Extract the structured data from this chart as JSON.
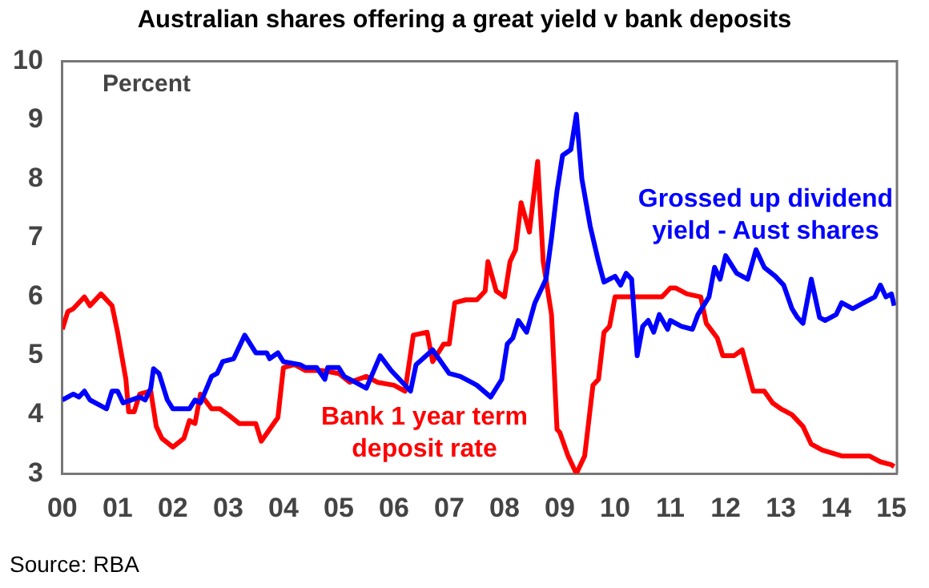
{
  "chart_data": {
    "type": "line",
    "title": "Australian shares offering a great yield v bank deposits",
    "ylabel": "Percent",
    "annotations": [
      "Source: RBA"
    ],
    "xlim": [
      2000,
      2015.1
    ],
    "xticks": [
      {
        "value": 2000,
        "label": "00"
      },
      {
        "value": 2001,
        "label": "01"
      },
      {
        "value": 2002,
        "label": "02"
      },
      {
        "value": 2003,
        "label": "03"
      },
      {
        "value": 2004,
        "label": "04"
      },
      {
        "value": 2005,
        "label": "05"
      },
      {
        "value": 2006,
        "label": "06"
      },
      {
        "value": 2007,
        "label": "07"
      },
      {
        "value": 2008,
        "label": "08"
      },
      {
        "value": 2009,
        "label": "09"
      },
      {
        "value": 2010,
        "label": "10"
      },
      {
        "value": 2011,
        "label": "11"
      },
      {
        "value": 2012,
        "label": "12"
      },
      {
        "value": 2013,
        "label": "13"
      },
      {
        "value": 2014,
        "label": "14"
      },
      {
        "value": 2015,
        "label": "15"
      }
    ],
    "ylim": [
      3,
      10
    ],
    "yticks": [
      3,
      4,
      5,
      6,
      7,
      8,
      9,
      10
    ],
    "grid": false,
    "legend": false,
    "marker": "none",
    "line_style": "solid",
    "series": [
      {
        "name": "Grossed up dividend yield - Aust shares",
        "color": "#0000ff",
        "x": [
          2000.0,
          2000.2,
          2000.3,
          2000.4,
          2000.5,
          2000.7,
          2000.8,
          2000.9,
          2001.0,
          2001.1,
          2001.4,
          2001.5,
          2001.6,
          2001.65,
          2001.75,
          2001.9,
          2002.0,
          2002.3,
          2002.4,
          2002.5,
          2002.7,
          2002.8,
          2002.9,
          2003.1,
          2003.3,
          2003.5,
          2003.7,
          2003.75,
          2003.9,
          2004.0,
          2004.3,
          2004.4,
          2004.6,
          2004.75,
          2004.8,
          2005.0,
          2005.1,
          2005.3,
          2005.5,
          2005.75,
          2005.95,
          2006.1,
          2006.3,
          2006.4,
          2006.7,
          2007.0,
          2007.2,
          2007.4,
          2007.5,
          2007.75,
          2007.95,
          2008.05,
          2008.15,
          2008.25,
          2008.4,
          2008.55,
          2008.75,
          2008.85,
          2008.95,
          2009.05,
          2009.2,
          2009.3,
          2009.4,
          2009.55,
          2009.7,
          2009.8,
          2010.0,
          2010.1,
          2010.2,
          2010.3,
          2010.4,
          2010.5,
          2010.6,
          2010.7,
          2010.8,
          2010.95,
          2011.0,
          2011.2,
          2011.4,
          2011.5,
          2011.7,
          2011.8,
          2011.9,
          2012.0,
          2012.2,
          2012.4,
          2012.55,
          2012.7,
          2012.9,
          2013.05,
          2013.2,
          2013.3,
          2013.4,
          2013.55,
          2013.7,
          2013.8,
          2014.0,
          2014.1,
          2014.3,
          2014.5,
          2014.7,
          2014.8,
          2014.9,
          2015.0,
          2015.05
        ],
        "values": [
          4.25,
          4.35,
          4.3,
          4.4,
          4.25,
          4.15,
          4.1,
          4.4,
          4.4,
          4.2,
          4.3,
          4.25,
          4.45,
          4.78,
          4.7,
          4.25,
          4.1,
          4.1,
          4.25,
          4.2,
          4.65,
          4.7,
          4.9,
          4.95,
          5.35,
          5.05,
          5.05,
          4.95,
          5.05,
          4.9,
          4.85,
          4.8,
          4.8,
          4.6,
          4.8,
          4.8,
          4.65,
          4.55,
          4.45,
          5.0,
          4.75,
          4.6,
          4.4,
          4.85,
          5.1,
          4.7,
          4.65,
          4.55,
          4.5,
          4.3,
          4.6,
          5.2,
          5.3,
          5.6,
          5.4,
          5.9,
          6.3,
          7.0,
          7.8,
          8.4,
          8.5,
          9.1,
          8.0,
          7.2,
          6.6,
          6.25,
          6.35,
          6.2,
          6.4,
          6.3,
          5.0,
          5.5,
          5.6,
          5.4,
          5.7,
          5.45,
          5.6,
          5.5,
          5.45,
          5.7,
          6.0,
          6.5,
          6.3,
          6.7,
          6.4,
          6.3,
          6.8,
          6.5,
          6.35,
          6.2,
          5.8,
          5.65,
          5.55,
          6.3,
          5.65,
          5.6,
          5.7,
          5.9,
          5.8,
          5.9,
          6.0,
          6.2,
          6.0,
          6.05,
          5.85
        ]
      },
      {
        "name": "Bank 1 year term deposit rate",
        "color": "#ff0000",
        "x": [
          2000.0,
          2000.1,
          2000.2,
          2000.4,
          2000.5,
          2000.7,
          2000.9,
          2001.0,
          2001.15,
          2001.2,
          2001.3,
          2001.4,
          2001.6,
          2001.7,
          2001.8,
          2002.0,
          2002.2,
          2002.3,
          2002.4,
          2002.5,
          2002.7,
          2002.85,
          2003.0,
          2003.2,
          2003.5,
          2003.6,
          2003.75,
          2003.9,
          2004.0,
          2004.2,
          2004.4,
          2004.7,
          2005.0,
          2005.2,
          2005.5,
          2005.7,
          2006.0,
          2006.2,
          2006.35,
          2006.6,
          2006.7,
          2006.9,
          2007.0,
          2007.1,
          2007.3,
          2007.5,
          2007.65,
          2007.7,
          2007.85,
          2008.0,
          2008.1,
          2008.2,
          2008.3,
          2008.45,
          2008.6,
          2008.7,
          2008.85,
          2008.95,
          2009.0,
          2009.15,
          2009.3,
          2009.45,
          2009.6,
          2009.7,
          2009.8,
          2009.9,
          2010.0,
          2010.5,
          2010.85,
          2011.0,
          2011.1,
          2011.3,
          2011.55,
          2011.65,
          2011.85,
          2011.95,
          2012.15,
          2012.3,
          2012.5,
          2012.7,
          2012.85,
          2013.0,
          2013.2,
          2013.4,
          2013.55,
          2013.75,
          2014.1,
          2014.6,
          2014.8,
          2015.0,
          2015.05
        ],
        "values": [
          5.45,
          5.75,
          5.8,
          6.0,
          5.85,
          6.05,
          5.85,
          5.4,
          4.6,
          4.05,
          4.05,
          4.35,
          4.4,
          3.8,
          3.6,
          3.45,
          3.6,
          3.9,
          3.85,
          4.35,
          4.1,
          4.1,
          4.0,
          3.85,
          3.85,
          3.55,
          3.75,
          3.95,
          4.8,
          4.85,
          4.75,
          4.75,
          4.7,
          4.55,
          4.65,
          4.55,
          4.5,
          4.4,
          5.35,
          5.4,
          4.9,
          5.2,
          5.2,
          5.9,
          5.95,
          5.95,
          6.1,
          6.6,
          6.1,
          6.0,
          6.6,
          6.8,
          7.6,
          7.1,
          8.3,
          6.6,
          5.7,
          3.75,
          3.7,
          3.3,
          3.0,
          3.3,
          4.5,
          4.6,
          5.4,
          5.5,
          6.0,
          6.0,
          6.0,
          6.15,
          6.15,
          6.05,
          6.0,
          5.55,
          5.3,
          5.0,
          5.0,
          5.1,
          4.4,
          4.4,
          4.2,
          4.1,
          4.0,
          3.8,
          3.5,
          3.4,
          3.3,
          3.3,
          3.2,
          3.15,
          3.12
        ]
      }
    ]
  }
}
